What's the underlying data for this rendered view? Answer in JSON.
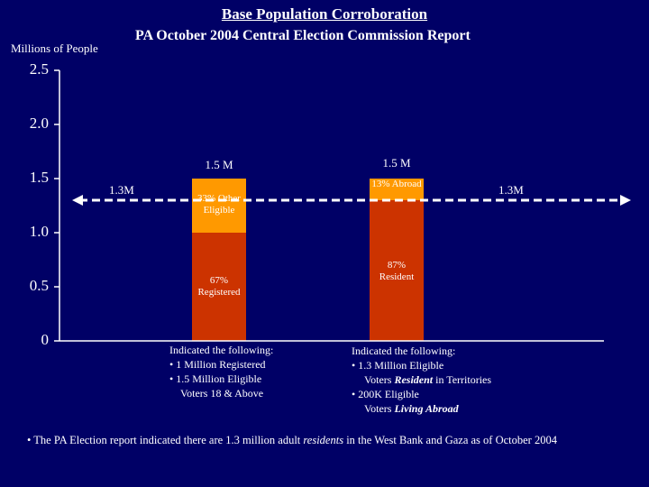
{
  "title": "Base Population Corroboration",
  "subtitle": "PA October 2004 Central Election Commission Report",
  "colors": {
    "background": "#000066",
    "resident_red": "#cc3300",
    "other_orange": "#ff9900",
    "reference_line": "#ffffff",
    "axis": "#ffffff"
  },
  "chart_data": {
    "type": "bar",
    "title": "Base Population Corroboration",
    "ylabel": "Millions of People",
    "ylim": [
      0,
      2.5
    ],
    "yticks": [
      "0",
      "0.5",
      "1.0",
      "1.5",
      "2.0",
      "2.5"
    ],
    "ytick_values": [
      0,
      0.5,
      1.0,
      1.5,
      2.0,
      2.5
    ],
    "reference_line": {
      "value": 1.3,
      "label_left": "1.3M",
      "label_right": "1.3M",
      "style": "dashed with arrows"
    },
    "bars": [
      {
        "total_label": "1.5 M",
        "segments": [
          {
            "label": "67% Registered",
            "value": 1.0,
            "color": "#cc3300"
          },
          {
            "label": "33% Other Eligible",
            "value": 0.5,
            "color": "#ff9900"
          }
        ]
      },
      {
        "total_label": "1.5 M",
        "segments": [
          {
            "label": "87% Resident",
            "value": 1.3,
            "color": "#cc3300"
          },
          {
            "label": "13% Abroad",
            "value": 0.2,
            "color": "#ff9900"
          }
        ]
      }
    ]
  },
  "notes": {
    "bar1": {
      "heading": "Indicated the following:",
      "line1": "• 1 Million Registered",
      "line2": "• 1.5 Million Eligible",
      "line3": "Voters 18 & Above"
    },
    "bar2": {
      "heading": "Indicated the following:",
      "line1": "• 1.3 Million Eligible",
      "line2_pre": "Voters ",
      "line2_em": "Resident",
      "line2_post": " in Territories",
      "line3": "•  200K Eligible",
      "line4_pre": "Voters ",
      "line4_em": "Living Abroad"
    }
  },
  "footnote": {
    "pre": "• The PA Election report indicated there are 1.3 million adult ",
    "em": "residents",
    "post": " in the West Bank and Gaza as of October 2004"
  }
}
